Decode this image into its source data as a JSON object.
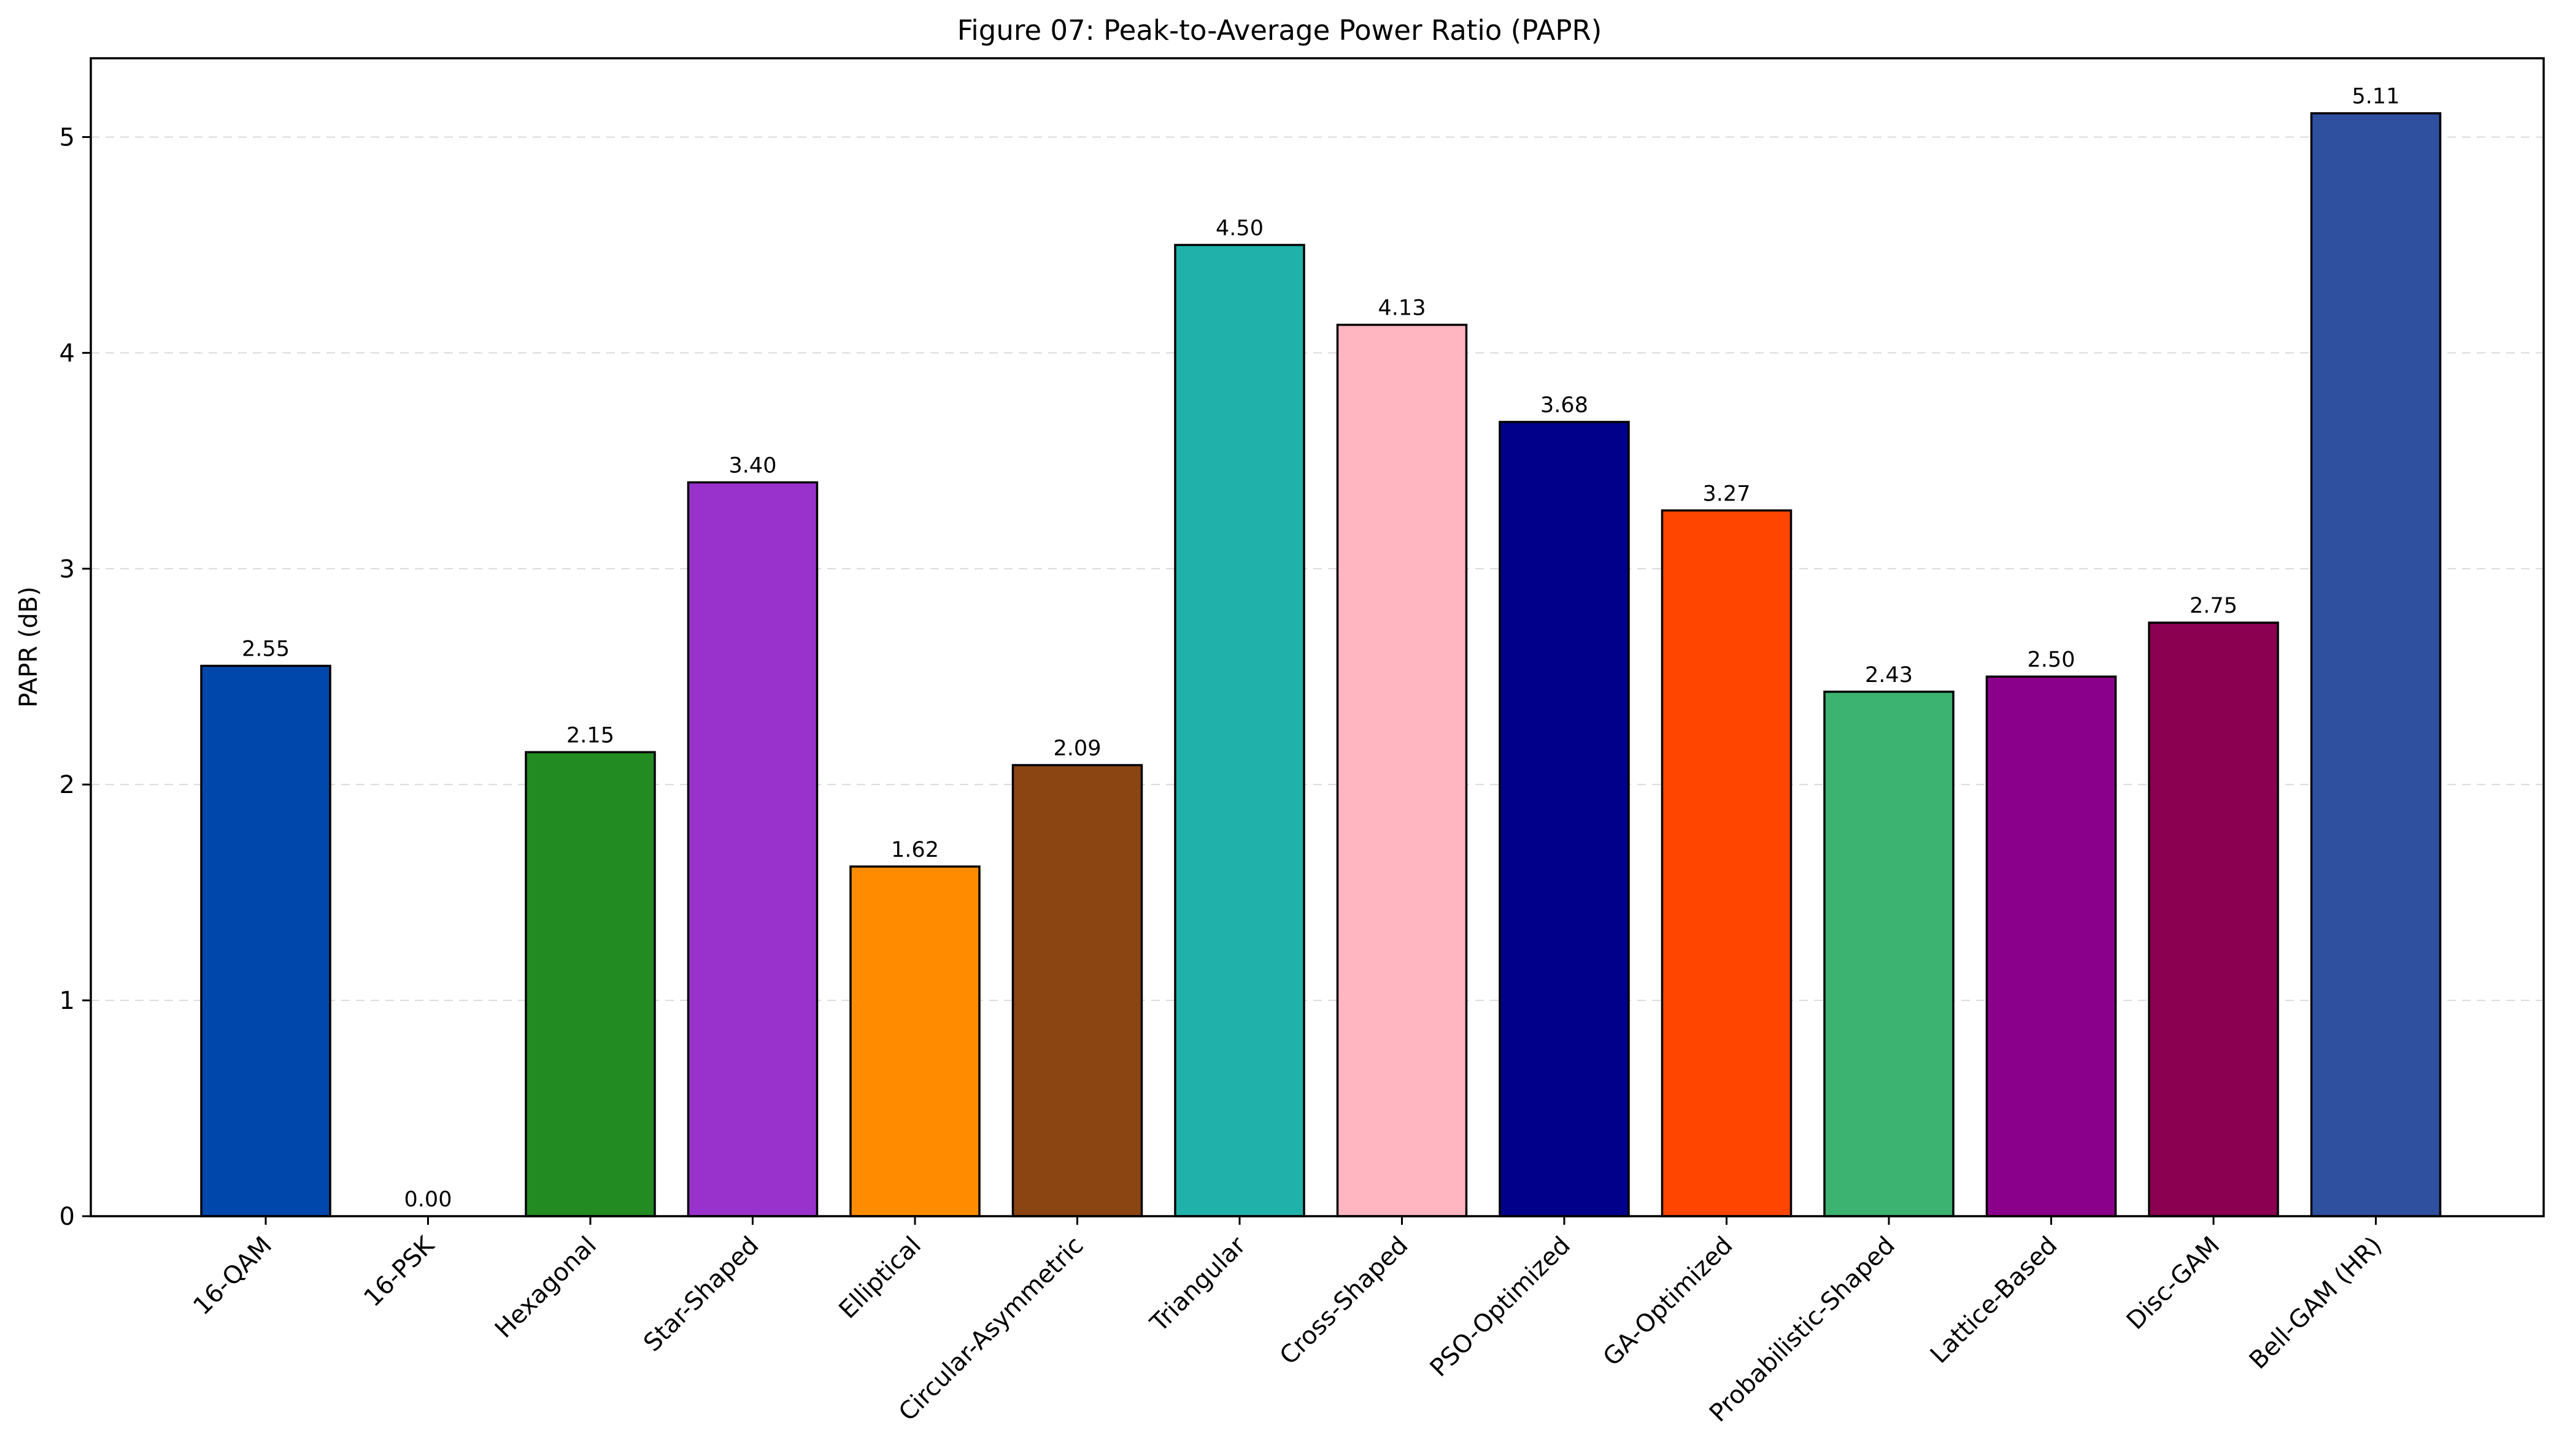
{
  "chart_data": {
    "type": "bar",
    "title": "Figure 07: Peak-to-Average Power Ratio (PAPR)",
    "xlabel": "",
    "ylabel": "PAPR (dB)",
    "ylim": [
      0,
      5.365
    ],
    "yticks": [
      0,
      1,
      2,
      3,
      4,
      5
    ],
    "grid": true,
    "categories": [
      "16-QAM",
      "16-PSK",
      "Hexagonal",
      "Star-Shaped",
      "Elliptical",
      "Circular-Asymmetric",
      "Triangular",
      "Cross-Shaped",
      "PSO-Optimized",
      "GA-Optimized",
      "Probabilistic-Shaped",
      "Lattice-Based",
      "Disc-GAM",
      "Bell-GAM (HR)"
    ],
    "values": [
      2.55,
      0.0,
      2.15,
      3.4,
      1.62,
      2.09,
      4.5,
      4.13,
      3.68,
      3.27,
      2.43,
      2.5,
      2.75,
      5.11
    ],
    "value_labels": [
      "2.55",
      "0.00",
      "2.15",
      "3.40",
      "1.62",
      "2.09",
      "4.50",
      "4.13",
      "3.68",
      "3.27",
      "2.43",
      "2.50",
      "2.75",
      "5.11"
    ],
    "colors": [
      "#0047AB",
      "#FFFFFF",
      "#228B22",
      "#9932CC",
      "#FF8C00",
      "#8B4513",
      "#20B2AA",
      "#FFB6C1",
      "#00008B",
      "#FF4500",
      "#3CB371",
      "#8B008B",
      "#8B0051",
      "#2F4F9F"
    ]
  }
}
